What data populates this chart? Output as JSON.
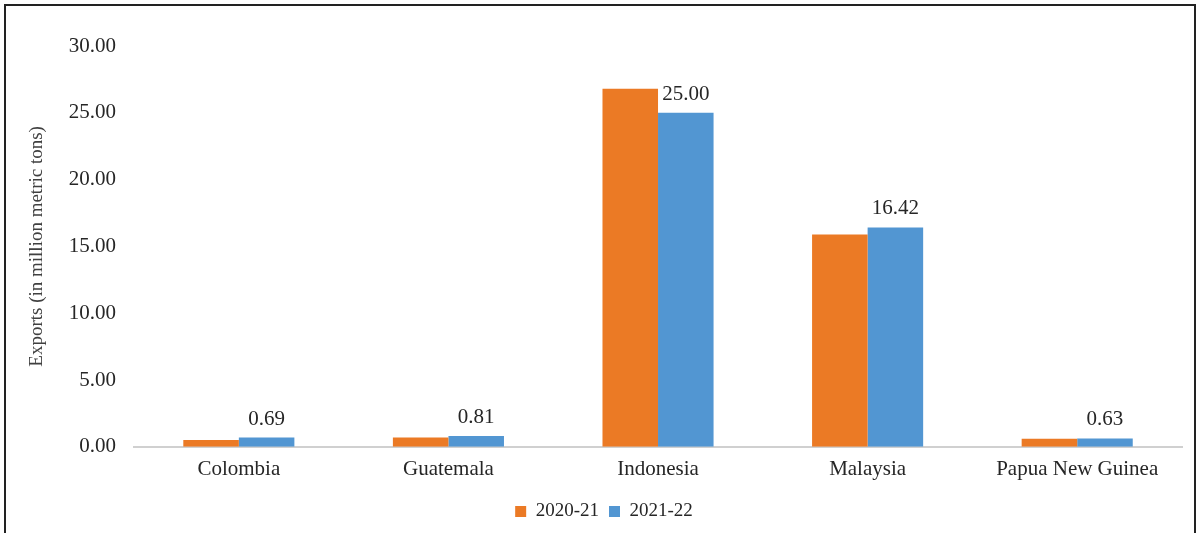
{
  "chart_data": {
    "type": "bar",
    "ylabel": "Exports (in million metric tons)",
    "categories": [
      "Colombia",
      "Guatemala",
      "Indonesia",
      "Malaysia",
      "Papua New Guinea"
    ],
    "series": [
      {
        "name": "2020-21",
        "color": "#eb7a25",
        "values": [
          0.5,
          0.7,
          26.8,
          15.9,
          0.6
        ]
      },
      {
        "name": "2021-22",
        "color": "#5296d2",
        "values": [
          0.69,
          0.81,
          25.0,
          16.42,
          0.63
        ],
        "value_labels": [
          "0.69",
          "0.81",
          "25.00",
          "16.42",
          "0.63"
        ]
      }
    ],
    "ylim": [
      0,
      30
    ],
    "yticks": [
      {
        "value": 0,
        "label": "0.00"
      },
      {
        "value": 5,
        "label": "5.00"
      },
      {
        "value": 10,
        "label": "10.00"
      },
      {
        "value": 15,
        "label": "15.00"
      },
      {
        "value": 20,
        "label": "20.00"
      },
      {
        "value": 25,
        "label": "25.00"
      },
      {
        "value": 30,
        "label": "30.00"
      }
    ],
    "grid": false,
    "legend": "bottom"
  }
}
